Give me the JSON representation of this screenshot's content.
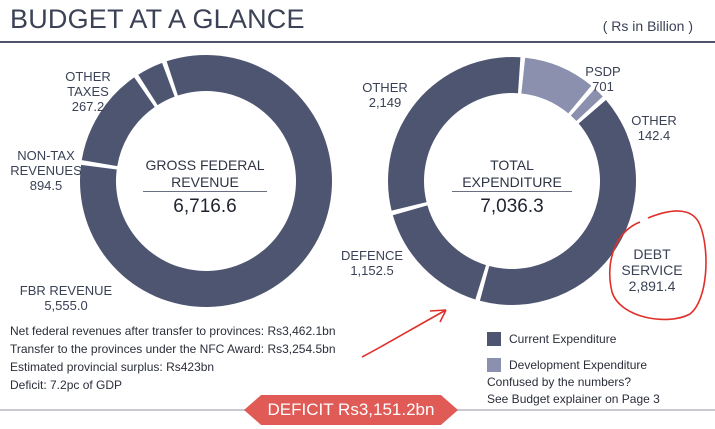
{
  "header": {
    "title": "BUDGET AT A GLANCE",
    "units": "( Rs in Billion )"
  },
  "chart_data": [
    {
      "type": "pie",
      "title": "GROSS FEDERAL REVENUE",
      "total": "6,716.6",
      "labels": [
        "FBR REVENUE",
        "NON-TAX REVENUES",
        "OTHER TAXES"
      ],
      "values": [
        5555.0,
        894.5,
        267.2
      ],
      "value_labels": [
        "5,555.0",
        "894.5",
        "267.2"
      ],
      "series_colors": [
        "#4e5571",
        "#4e5571",
        "#4e5571"
      ]
    },
    {
      "type": "pie",
      "title": "TOTAL EXPENDITURE",
      "total": "7,036.3",
      "labels": [
        "PSDP",
        "OTHER",
        "DEBT SERVICE",
        "DEFENCE",
        "OTHER"
      ],
      "values": [
        701,
        142.4,
        2891.4,
        1152.5,
        2149
      ],
      "value_labels": [
        "701",
        "142.4",
        "2,891.4",
        "1,152.5",
        "2,149"
      ],
      "series_colors": [
        "#8a90ad",
        "#8a90ad",
        "#4e5571",
        "#4e5571",
        "#4e5571"
      ]
    }
  ],
  "revenue_labels": {
    "other_taxes": {
      "name": "OTHER\nTAXES",
      "value": "267.2"
    },
    "non_tax": {
      "name": "NON-TAX\nREVENUES",
      "value": "894.5"
    },
    "fbr": {
      "name": "FBR REVENUE",
      "value": "5,555.0"
    }
  },
  "expenditure_labels": {
    "other_left": {
      "name": "OTHER",
      "value": "2,149"
    },
    "psdp": {
      "name": "PSDP",
      "value": "701"
    },
    "other_right": {
      "name": "OTHER",
      "value": "142.4"
    },
    "defence": {
      "name": "DEFENCE",
      "value": "1,152.5"
    },
    "debt": {
      "name": "DEBT\nSERVICE",
      "value": "2,891.4"
    }
  },
  "notes": [
    "Net federal revenues after transfer to provinces: Rs3,462.1bn",
    "Transfer to the provinces under the NFC Award: Rs3,254.5bn",
    "Estimated provincial surplus: Rs423bn",
    "Deficit: 7.2pc of GDP"
  ],
  "legend": [
    {
      "label": "Current Expenditure",
      "color": "#4e5571"
    },
    {
      "label": "Development Expenditure",
      "color": "#8a90ad"
    }
  ],
  "confused": [
    "Confused by the numbers?",
    "See Budget explainer on Page 3"
  ],
  "deficit": "DEFICIT  Rs3,151.2bn",
  "colors": {
    "annotation": "#e0302a"
  }
}
